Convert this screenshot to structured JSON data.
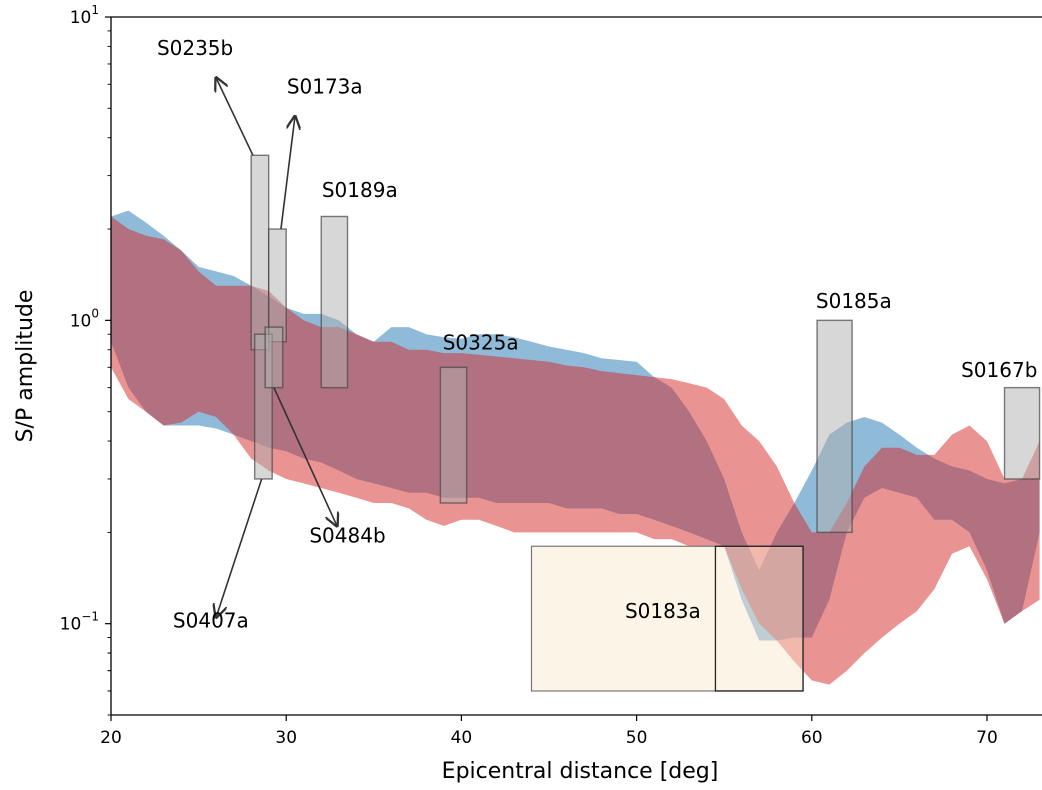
{
  "chart_data": {
    "type": "area",
    "xlabel": "Epicentral distance [deg]",
    "ylabel": "S/P amplitude",
    "xlim": [
      20,
      73
    ],
    "ylim": [
      0.05,
      10
    ],
    "yscale": "log",
    "grid": false,
    "x_ticks": [
      20,
      30,
      40,
      50,
      60,
      70
    ],
    "y_ticks": [
      {
        "value": 0.1,
        "base": "10",
        "exp": "−1"
      },
      {
        "value": 1,
        "base": "10",
        "exp": "0"
      },
      {
        "value": 10,
        "base": "10",
        "exp": "1"
      }
    ],
    "colors": {
      "blue_band": "#1f77b4",
      "red_band": "#d62728",
      "obs_box": "#b0b0b0",
      "s0183a_box": "#fbe6cc"
    },
    "series": [
      {
        "color": "#1f77b4",
        "x": [
          20,
          21,
          22,
          23,
          24,
          25,
          26,
          27,
          28,
          29,
          30,
          31,
          32,
          33,
          34,
          35,
          36,
          37,
          38,
          39,
          40,
          41,
          42,
          43,
          44,
          45,
          46,
          47,
          48,
          49,
          50,
          51,
          52,
          53,
          54,
          55,
          56,
          57,
          58,
          59,
          60,
          61,
          62,
          63,
          64,
          65,
          66,
          67,
          68,
          69,
          70,
          71,
          72,
          73
        ],
        "upper": [
          2.2,
          2.3,
          2.1,
          1.9,
          1.7,
          1.5,
          1.45,
          1.4,
          1.3,
          1.2,
          1.1,
          1.05,
          1.05,
          1.0,
          0.9,
          0.85,
          0.95,
          0.95,
          0.9,
          0.88,
          0.87,
          0.9,
          0.9,
          0.88,
          0.85,
          0.82,
          0.8,
          0.78,
          0.75,
          0.74,
          0.73,
          0.65,
          0.6,
          0.5,
          0.4,
          0.3,
          0.2,
          0.15,
          0.2,
          0.25,
          0.32,
          0.42,
          0.46,
          0.48,
          0.46,
          0.42,
          0.38,
          0.35,
          0.33,
          0.32,
          0.3,
          0.29,
          0.3,
          0.3
        ],
        "lower": [
          0.85,
          0.6,
          0.5,
          0.45,
          0.45,
          0.45,
          0.44,
          0.42,
          0.4,
          0.38,
          0.37,
          0.35,
          0.34,
          0.32,
          0.3,
          0.29,
          0.28,
          0.27,
          0.27,
          0.26,
          0.26,
          0.26,
          0.25,
          0.25,
          0.25,
          0.25,
          0.24,
          0.24,
          0.24,
          0.23,
          0.23,
          0.22,
          0.21,
          0.2,
          0.19,
          0.18,
          0.12,
          0.088,
          0.088,
          0.09,
          0.09,
          0.12,
          0.2,
          0.26,
          0.28,
          0.27,
          0.26,
          0.22,
          0.22,
          0.2,
          0.15,
          0.1,
          0.11,
          0.2
        ]
      },
      {
        "color": "#d62728",
        "x": [
          20,
          21,
          22,
          23,
          24,
          25,
          26,
          27,
          28,
          29,
          30,
          31,
          32,
          33,
          34,
          35,
          36,
          37,
          38,
          39,
          40,
          41,
          42,
          43,
          44,
          45,
          46,
          47,
          48,
          49,
          50,
          51,
          52,
          53,
          54,
          55,
          56,
          57,
          58,
          59,
          60,
          61,
          62,
          63,
          64,
          65,
          66,
          67,
          68,
          69,
          70,
          71,
          72,
          73
        ],
        "upper": [
          2.2,
          2.0,
          1.9,
          1.85,
          1.7,
          1.45,
          1.3,
          1.3,
          1.3,
          1.25,
          1.1,
          1.0,
          0.95,
          0.95,
          0.9,
          0.85,
          0.85,
          0.8,
          0.8,
          0.78,
          0.78,
          0.77,
          0.76,
          0.75,
          0.74,
          0.73,
          0.71,
          0.7,
          0.68,
          0.67,
          0.66,
          0.65,
          0.64,
          0.62,
          0.6,
          0.55,
          0.45,
          0.4,
          0.33,
          0.25,
          0.2,
          0.2,
          0.25,
          0.33,
          0.38,
          0.38,
          0.36,
          0.36,
          0.42,
          0.45,
          0.4,
          0.3,
          0.3,
          0.4
        ],
        "lower": [
          0.7,
          0.55,
          0.5,
          0.45,
          0.46,
          0.5,
          0.48,
          0.42,
          0.35,
          0.32,
          0.3,
          0.29,
          0.28,
          0.27,
          0.26,
          0.25,
          0.25,
          0.24,
          0.22,
          0.21,
          0.22,
          0.22,
          0.21,
          0.2,
          0.2,
          0.2,
          0.2,
          0.2,
          0.2,
          0.2,
          0.2,
          0.19,
          0.19,
          0.18,
          0.18,
          0.18,
          0.13,
          0.1,
          0.088,
          0.075,
          0.065,
          0.063,
          0.07,
          0.08,
          0.09,
          0.1,
          0.11,
          0.13,
          0.17,
          0.18,
          0.14,
          0.1,
          0.11,
          0.12
        ]
      }
    ],
    "observations": [
      {
        "label": "S0235b",
        "x0": 28.0,
        "x1": 29.0,
        "y0": 0.8,
        "y1": 3.5,
        "text_x": 24.8,
        "text_y": 7.5,
        "arrow": {
          "from_x": 28.1,
          "from_y": 3.5,
          "to_x": 26.0,
          "to_y": 6.3
        }
      },
      {
        "label": "S0173a",
        "x0": 29.0,
        "x1": 30.0,
        "y0": 0.85,
        "y1": 2.0,
        "text_x": 32.2,
        "text_y": 5.6,
        "arrow": {
          "from_x": 29.7,
          "from_y": 2.0,
          "to_x": 30.5,
          "to_y": 4.7
        }
      },
      {
        "label": "S0189a",
        "x0": 32.0,
        "x1": 33.5,
        "y0": 0.6,
        "y1": 2.2,
        "text_x": 34.2,
        "text_y": 2.55,
        "arrow": null
      },
      {
        "label": "S0407a",
        "x0": 28.2,
        "x1": 29.2,
        "y0": 0.3,
        "y1": 0.9,
        "text_x": 25.7,
        "text_y": 0.097,
        "arrow": {
          "from_x": 28.6,
          "from_y": 0.3,
          "to_x": 26.0,
          "to_y": 0.105
        }
      },
      {
        "label": "S0484b",
        "x0": 28.8,
        "x1": 29.8,
        "y0": 0.6,
        "y1": 0.95,
        "text_x": 33.5,
        "text_y": 0.185,
        "arrow": {
          "from_x": 29.3,
          "from_y": 0.6,
          "to_x": 32.9,
          "to_y": 0.21
        }
      },
      {
        "label": "S0325a",
        "x0": 38.8,
        "x1": 40.3,
        "y0": 0.25,
        "y1": 0.7,
        "text_x": 41.1,
        "text_y": 0.8,
        "arrow": null
      },
      {
        "label": "S0185a",
        "x0": 60.3,
        "x1": 62.3,
        "y0": 0.2,
        "y1": 1.0,
        "text_x": 62.4,
        "text_y": 1.1,
        "arrow": null
      },
      {
        "label": "S0167b",
        "x0": 71.0,
        "x1": 73.0,
        "y0": 0.3,
        "y1": 0.6,
        "text_x": 70.7,
        "text_y": 0.65,
        "arrow": null
      }
    ],
    "s0183a": {
      "label": "S0183a",
      "x0": 44.0,
      "x1": 59.5,
      "y0": 0.06,
      "y1": 0.18,
      "dark_x0": 54.5,
      "text_x": 51.5,
      "text_y": 0.11
    }
  }
}
